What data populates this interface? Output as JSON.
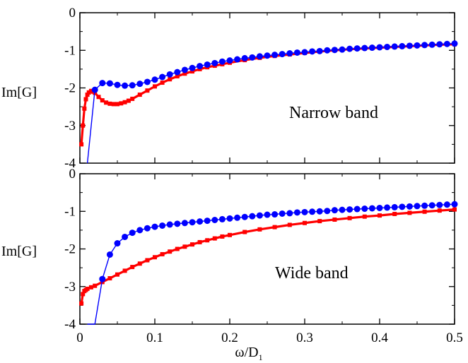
{
  "chart_data": [
    {
      "type": "line",
      "panel": "top",
      "annotation": "Narrow band",
      "ylabel": "Im[G]",
      "xlabel": "",
      "xlim": [
        0,
        0.5
      ],
      "ylim": [
        -4,
        0
      ],
      "xticks": [
        0,
        0.1,
        0.2,
        0.3,
        0.4,
        0.5
      ],
      "yticks": [
        0,
        -1,
        -2,
        -3,
        -4
      ],
      "ytick_labels": [
        "0",
        "-1",
        "-2",
        "-3",
        "-4"
      ],
      "grid": false,
      "series": [
        {
          "color": "#0000ff",
          "marker": "circle",
          "x": [
            0.01,
            0.02,
            0.03,
            0.04,
            0.05,
            0.06,
            0.07,
            0.08,
            0.09,
            0.1,
            0.11,
            0.12,
            0.13,
            0.14,
            0.15,
            0.16,
            0.17,
            0.18,
            0.19,
            0.2,
            0.21,
            0.22,
            0.23,
            0.24,
            0.25,
            0.26,
            0.27,
            0.28,
            0.29,
            0.3,
            0.31,
            0.32,
            0.33,
            0.34,
            0.35,
            0.36,
            0.37,
            0.38,
            0.39,
            0.4,
            0.41,
            0.42,
            0.43,
            0.44,
            0.45,
            0.46,
            0.47,
            0.48,
            0.49,
            0.5
          ],
          "y": [
            -4.3,
            -2.05,
            -1.87,
            -1.88,
            -1.92,
            -1.94,
            -1.93,
            -1.89,
            -1.84,
            -1.78,
            -1.71,
            -1.64,
            -1.58,
            -1.52,
            -1.47,
            -1.42,
            -1.38,
            -1.34,
            -1.3,
            -1.27,
            -1.24,
            -1.21,
            -1.19,
            -1.16,
            -1.14,
            -1.12,
            -1.1,
            -1.08,
            -1.06,
            -1.05,
            -1.03,
            -1.02,
            -1.0,
            -0.99,
            -0.98,
            -0.96,
            -0.95,
            -0.94,
            -0.93,
            -0.92,
            -0.91,
            -0.9,
            -0.89,
            -0.88,
            -0.87,
            -0.86,
            -0.85,
            -0.84,
            -0.83,
            -0.82
          ]
        },
        {
          "color": "#ff0000",
          "marker": "square",
          "x": [
            0.002,
            0.004,
            0.006,
            0.008,
            0.01,
            0.012,
            0.015,
            0.018,
            0.02,
            0.025,
            0.03,
            0.035,
            0.04,
            0.045,
            0.05,
            0.055,
            0.06,
            0.065,
            0.07,
            0.08,
            0.09,
            0.1,
            0.11,
            0.12,
            0.13,
            0.14,
            0.15,
            0.16,
            0.17,
            0.18,
            0.19,
            0.2,
            0.22,
            0.24,
            0.26,
            0.28,
            0.3,
            0.32,
            0.34,
            0.36,
            0.38,
            0.4,
            0.42,
            0.44,
            0.46,
            0.48,
            0.5
          ],
          "y": [
            -3.5,
            -3.0,
            -2.55,
            -2.3,
            -2.18,
            -2.12,
            -2.08,
            -2.1,
            -2.13,
            -2.24,
            -2.33,
            -2.39,
            -2.42,
            -2.43,
            -2.43,
            -2.41,
            -2.38,
            -2.34,
            -2.29,
            -2.18,
            -2.07,
            -1.96,
            -1.86,
            -1.77,
            -1.69,
            -1.62,
            -1.56,
            -1.5,
            -1.45,
            -1.41,
            -1.37,
            -1.33,
            -1.26,
            -1.2,
            -1.15,
            -1.11,
            -1.07,
            -1.03,
            -1.0,
            -0.97,
            -0.95,
            -0.93,
            -0.91,
            -0.89,
            -0.87,
            -0.85,
            -0.84
          ]
        }
      ]
    },
    {
      "type": "line",
      "panel": "bottom",
      "annotation": "Wide band",
      "ylabel": "Im[G]",
      "xlabel": "ω/D",
      "xlabel_subscript": "1",
      "xlim": [
        0,
        0.5
      ],
      "ylim": [
        -4,
        0
      ],
      "xticks": [
        0,
        0.1,
        0.2,
        0.3,
        0.4,
        0.5
      ],
      "yticks": [
        0,
        -1,
        -2,
        -3,
        -4
      ],
      "ytick_labels": [
        "0",
        "-1",
        "-2",
        "-3",
        "-4"
      ],
      "grid": false,
      "series": [
        {
          "color": "#0000ff",
          "marker": "circle",
          "x": [
            0.01,
            0.02,
            0.03,
            0.04,
            0.05,
            0.06,
            0.07,
            0.08,
            0.09,
            0.1,
            0.11,
            0.12,
            0.13,
            0.14,
            0.15,
            0.16,
            0.17,
            0.18,
            0.19,
            0.2,
            0.21,
            0.22,
            0.23,
            0.24,
            0.25,
            0.26,
            0.27,
            0.28,
            0.29,
            0.3,
            0.31,
            0.32,
            0.33,
            0.34,
            0.35,
            0.36,
            0.37,
            0.38,
            0.39,
            0.4,
            0.41,
            0.42,
            0.43,
            0.44,
            0.45,
            0.46,
            0.47,
            0.48,
            0.49,
            0.5
          ],
          "y": [
            -4.5,
            -4.2,
            -2.8,
            -2.15,
            -1.85,
            -1.68,
            -1.57,
            -1.5,
            -1.45,
            -1.41,
            -1.38,
            -1.35,
            -1.33,
            -1.31,
            -1.29,
            -1.27,
            -1.25,
            -1.23,
            -1.21,
            -1.19,
            -1.17,
            -1.15,
            -1.13,
            -1.11,
            -1.09,
            -1.08,
            -1.06,
            -1.05,
            -1.03,
            -1.02,
            -1.01,
            -1.0,
            -0.99,
            -0.97,
            -0.96,
            -0.95,
            -0.94,
            -0.93,
            -0.92,
            -0.91,
            -0.9,
            -0.89,
            -0.88,
            -0.87,
            -0.86,
            -0.85,
            -0.84,
            -0.83,
            -0.82,
            -0.81
          ]
        },
        {
          "color": "#ff0000",
          "marker": "square",
          "x": [
            0.002,
            0.004,
            0.006,
            0.008,
            0.01,
            0.015,
            0.02,
            0.03,
            0.04,
            0.05,
            0.06,
            0.07,
            0.08,
            0.09,
            0.1,
            0.11,
            0.12,
            0.13,
            0.14,
            0.15,
            0.16,
            0.17,
            0.18,
            0.19,
            0.2,
            0.22,
            0.24,
            0.26,
            0.28,
            0.3,
            0.32,
            0.34,
            0.36,
            0.38,
            0.4,
            0.42,
            0.44,
            0.46,
            0.48,
            0.5
          ],
          "y": [
            -3.45,
            -3.2,
            -3.12,
            -3.09,
            -3.06,
            -3.02,
            -2.98,
            -2.88,
            -2.78,
            -2.68,
            -2.58,
            -2.48,
            -2.39,
            -2.3,
            -2.22,
            -2.14,
            -2.07,
            -2.0,
            -1.94,
            -1.88,
            -1.82,
            -1.77,
            -1.72,
            -1.67,
            -1.63,
            -1.55,
            -1.48,
            -1.42,
            -1.36,
            -1.31,
            -1.26,
            -1.22,
            -1.18,
            -1.14,
            -1.11,
            -1.07,
            -1.04,
            -1.01,
            -0.98,
            -0.95
          ]
        }
      ]
    }
  ]
}
